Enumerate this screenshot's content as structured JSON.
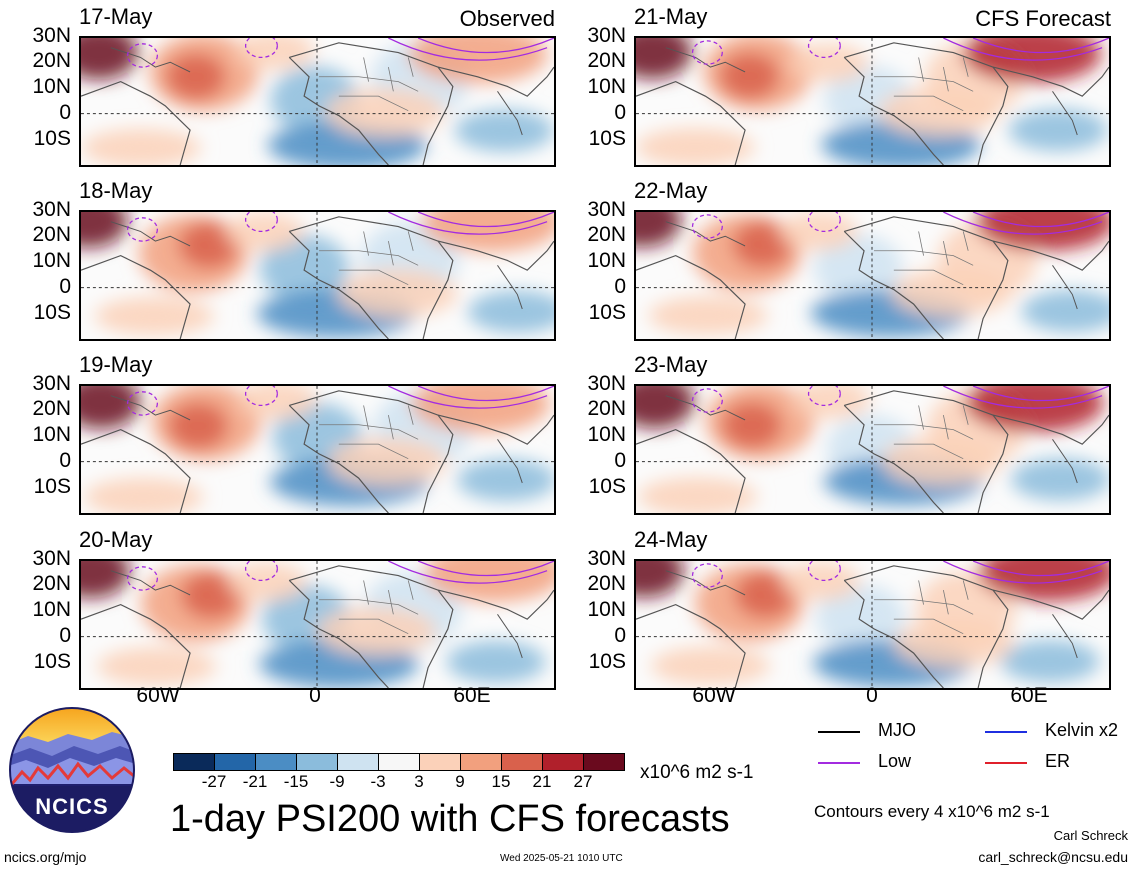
{
  "header": {
    "observed_label": "Observed",
    "forecast_label": "CFS Forecast"
  },
  "panels": {
    "observed": [
      "17-May",
      "18-May",
      "19-May",
      "20-May"
    ],
    "forecast": [
      "21-May",
      "22-May",
      "23-May",
      "24-May"
    ]
  },
  "axes": {
    "lat_labels": [
      "30N",
      "20N",
      "10N",
      "0",
      "10S"
    ],
    "lon_labels": [
      "60W",
      "0",
      "60E"
    ]
  },
  "colorbar": {
    "ticks": [
      "-27",
      "-21",
      "-15",
      "-9",
      "-3",
      "3",
      "9",
      "15",
      "21",
      "27"
    ],
    "colors": [
      "#0a2a5a",
      "#2366a8",
      "#4b8dc4",
      "#8bbcdc",
      "#cfe3f1",
      "#f7f7f7",
      "#fbd1b9",
      "#f2a07e",
      "#d9614c",
      "#b0202b",
      "#6a0a1e"
    ],
    "units": "x10^6 m2 s-1"
  },
  "legend": {
    "items": [
      {
        "label": "MJO",
        "color": "#000000"
      },
      {
        "label": "Kelvin x2",
        "color": "#1f2fe0"
      },
      {
        "label": "Low",
        "color": "#a32be0"
      },
      {
        "label": "ER",
        "color": "#e0202b"
      }
    ],
    "contour_note": "Contours every 4 x10^6 m2 s-1"
  },
  "footer": {
    "title": "1-day PSI200 with CFS forecasts",
    "url": "ncics.org/mjo",
    "timestamp": "Wed 2025-05-21 1010 UTC",
    "author": "Carl Schreck",
    "email": "carl_schreck@ncsu.edu",
    "logo_text": "NCICS"
  }
}
